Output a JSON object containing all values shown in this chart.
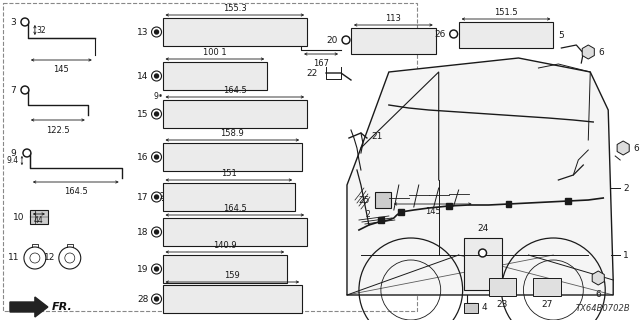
{
  "bg_color": "#ffffff",
  "line_color": "#1a1a1a",
  "diagram_num": "TX64B0702B",
  "fig_w": 6.4,
  "fig_h": 3.2,
  "dpi": 100
}
